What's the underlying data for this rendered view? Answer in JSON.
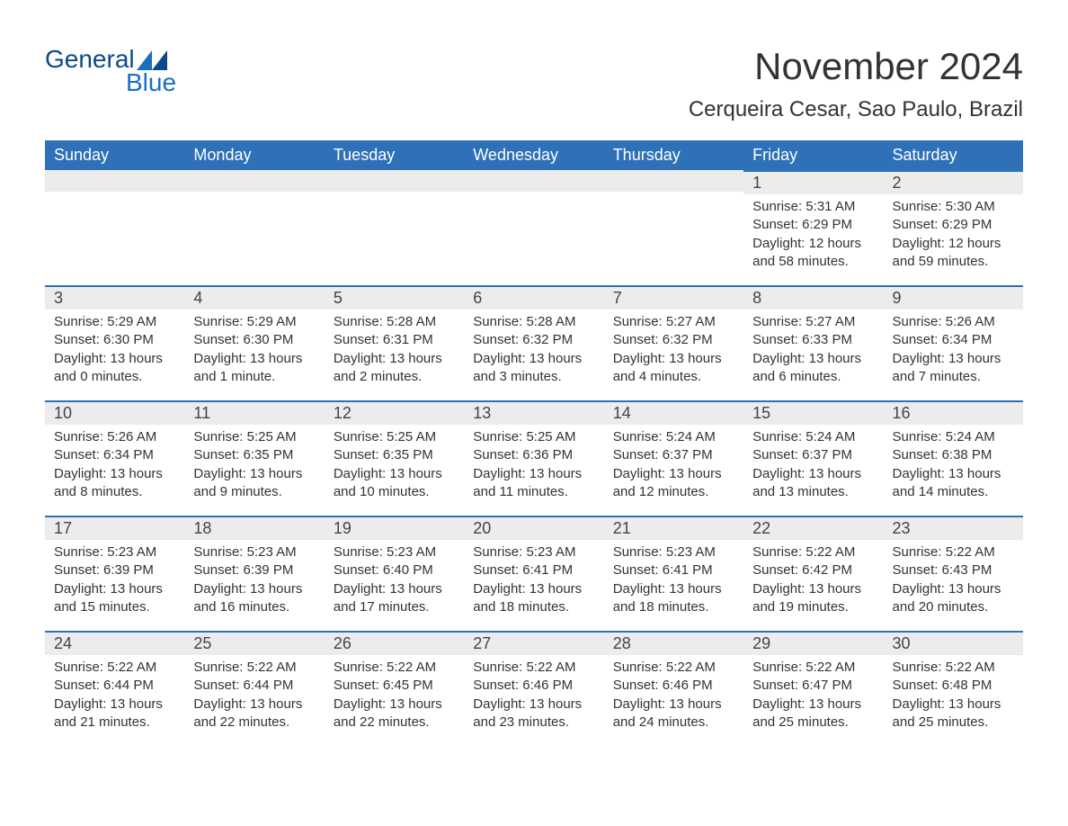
{
  "brand": {
    "word1": "General",
    "word2": "Blue"
  },
  "colors": {
    "header_bg": "#2f71b8",
    "header_text": "#ffffff",
    "row_stripe": "#ececec",
    "row_border": "#2f71b8",
    "text": "#333333",
    "logo_dark": "#0b4a8a",
    "logo_light": "#1a6fc0",
    "background": "#ffffff"
  },
  "title": "November 2024",
  "location": "Cerqueira Cesar, Sao Paulo, Brazil",
  "weekdays": [
    "Sunday",
    "Monday",
    "Tuesday",
    "Wednesday",
    "Thursday",
    "Friday",
    "Saturday"
  ],
  "weeks": [
    [
      {
        "empty": true,
        "stripe": true
      },
      {
        "empty": true,
        "stripe": true
      },
      {
        "empty": true,
        "stripe": true
      },
      {
        "empty": true,
        "stripe": true
      },
      {
        "empty": true,
        "stripe": true
      },
      {
        "day": "1",
        "sunrise": "Sunrise: 5:31 AM",
        "sunset": "Sunset: 6:29 PM",
        "daylight": "Daylight: 12 hours and 58 minutes."
      },
      {
        "day": "2",
        "sunrise": "Sunrise: 5:30 AM",
        "sunset": "Sunset: 6:29 PM",
        "daylight": "Daylight: 12 hours and 59 minutes."
      }
    ],
    [
      {
        "day": "3",
        "sunrise": "Sunrise: 5:29 AM",
        "sunset": "Sunset: 6:30 PM",
        "daylight": "Daylight: 13 hours and 0 minutes."
      },
      {
        "day": "4",
        "sunrise": "Sunrise: 5:29 AM",
        "sunset": "Sunset: 6:30 PM",
        "daylight": "Daylight: 13 hours and 1 minute."
      },
      {
        "day": "5",
        "sunrise": "Sunrise: 5:28 AM",
        "sunset": "Sunset: 6:31 PM",
        "daylight": "Daylight: 13 hours and 2 minutes."
      },
      {
        "day": "6",
        "sunrise": "Sunrise: 5:28 AM",
        "sunset": "Sunset: 6:32 PM",
        "daylight": "Daylight: 13 hours and 3 minutes."
      },
      {
        "day": "7",
        "sunrise": "Sunrise: 5:27 AM",
        "sunset": "Sunset: 6:32 PM",
        "daylight": "Daylight: 13 hours and 4 minutes."
      },
      {
        "day": "8",
        "sunrise": "Sunrise: 5:27 AM",
        "sunset": "Sunset: 6:33 PM",
        "daylight": "Daylight: 13 hours and 6 minutes."
      },
      {
        "day": "9",
        "sunrise": "Sunrise: 5:26 AM",
        "sunset": "Sunset: 6:34 PM",
        "daylight": "Daylight: 13 hours and 7 minutes."
      }
    ],
    [
      {
        "day": "10",
        "sunrise": "Sunrise: 5:26 AM",
        "sunset": "Sunset: 6:34 PM",
        "daylight": "Daylight: 13 hours and 8 minutes."
      },
      {
        "day": "11",
        "sunrise": "Sunrise: 5:25 AM",
        "sunset": "Sunset: 6:35 PM",
        "daylight": "Daylight: 13 hours and 9 minutes."
      },
      {
        "day": "12",
        "sunrise": "Sunrise: 5:25 AM",
        "sunset": "Sunset: 6:35 PM",
        "daylight": "Daylight: 13 hours and 10 minutes."
      },
      {
        "day": "13",
        "sunrise": "Sunrise: 5:25 AM",
        "sunset": "Sunset: 6:36 PM",
        "daylight": "Daylight: 13 hours and 11 minutes."
      },
      {
        "day": "14",
        "sunrise": "Sunrise: 5:24 AM",
        "sunset": "Sunset: 6:37 PM",
        "daylight": "Daylight: 13 hours and 12 minutes."
      },
      {
        "day": "15",
        "sunrise": "Sunrise: 5:24 AM",
        "sunset": "Sunset: 6:37 PM",
        "daylight": "Daylight: 13 hours and 13 minutes."
      },
      {
        "day": "16",
        "sunrise": "Sunrise: 5:24 AM",
        "sunset": "Sunset: 6:38 PM",
        "daylight": "Daylight: 13 hours and 14 minutes."
      }
    ],
    [
      {
        "day": "17",
        "sunrise": "Sunrise: 5:23 AM",
        "sunset": "Sunset: 6:39 PM",
        "daylight": "Daylight: 13 hours and 15 minutes."
      },
      {
        "day": "18",
        "sunrise": "Sunrise: 5:23 AM",
        "sunset": "Sunset: 6:39 PM",
        "daylight": "Daylight: 13 hours and 16 minutes."
      },
      {
        "day": "19",
        "sunrise": "Sunrise: 5:23 AM",
        "sunset": "Sunset: 6:40 PM",
        "daylight": "Daylight: 13 hours and 17 minutes."
      },
      {
        "day": "20",
        "sunrise": "Sunrise: 5:23 AM",
        "sunset": "Sunset: 6:41 PM",
        "daylight": "Daylight: 13 hours and 18 minutes."
      },
      {
        "day": "21",
        "sunrise": "Sunrise: 5:23 AM",
        "sunset": "Sunset: 6:41 PM",
        "daylight": "Daylight: 13 hours and 18 minutes."
      },
      {
        "day": "22",
        "sunrise": "Sunrise: 5:22 AM",
        "sunset": "Sunset: 6:42 PM",
        "daylight": "Daylight: 13 hours and 19 minutes."
      },
      {
        "day": "23",
        "sunrise": "Sunrise: 5:22 AM",
        "sunset": "Sunset: 6:43 PM",
        "daylight": "Daylight: 13 hours and 20 minutes."
      }
    ],
    [
      {
        "day": "24",
        "sunrise": "Sunrise: 5:22 AM",
        "sunset": "Sunset: 6:44 PM",
        "daylight": "Daylight: 13 hours and 21 minutes."
      },
      {
        "day": "25",
        "sunrise": "Sunrise: 5:22 AM",
        "sunset": "Sunset: 6:44 PM",
        "daylight": "Daylight: 13 hours and 22 minutes."
      },
      {
        "day": "26",
        "sunrise": "Sunrise: 5:22 AM",
        "sunset": "Sunset: 6:45 PM",
        "daylight": "Daylight: 13 hours and 22 minutes."
      },
      {
        "day": "27",
        "sunrise": "Sunrise: 5:22 AM",
        "sunset": "Sunset: 6:46 PM",
        "daylight": "Daylight: 13 hours and 23 minutes."
      },
      {
        "day": "28",
        "sunrise": "Sunrise: 5:22 AM",
        "sunset": "Sunset: 6:46 PM",
        "daylight": "Daylight: 13 hours and 24 minutes."
      },
      {
        "day": "29",
        "sunrise": "Sunrise: 5:22 AM",
        "sunset": "Sunset: 6:47 PM",
        "daylight": "Daylight: 13 hours and 25 minutes."
      },
      {
        "day": "30",
        "sunrise": "Sunrise: 5:22 AM",
        "sunset": "Sunset: 6:48 PM",
        "daylight": "Daylight: 13 hours and 25 minutes."
      }
    ]
  ]
}
